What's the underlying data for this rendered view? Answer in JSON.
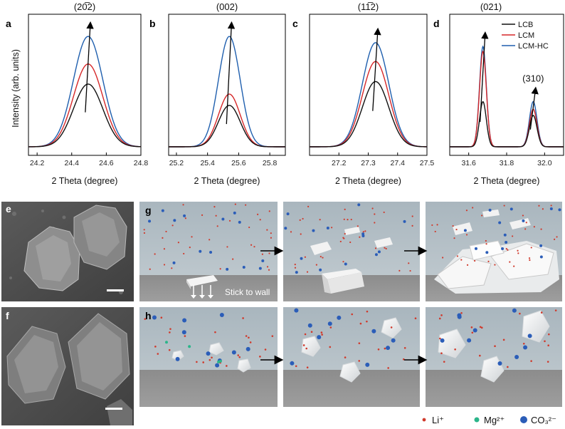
{
  "panel_labels": {
    "a": "a",
    "b": "b",
    "c": "c",
    "d": "d",
    "e": "e",
    "f": "f",
    "g": "g",
    "h": "h"
  },
  "y_axis_label": "Intensity (arb. units)",
  "x_axis_label": "2 Theta (degree)",
  "legend": [
    "LCB",
    "LCM",
    "LCM-HC"
  ],
  "colors": {
    "LCB": "#111111",
    "LCM": "#d62728",
    "LCM-HC": "#1f5fae",
    "li": "#d03a2c",
    "mg": "#2bb58a",
    "co3": "#2b5db8"
  },
  "chart_data": [
    {
      "type": "line",
      "panel": "a",
      "peak_label": "(20̅2)",
      "xlim": [
        24.15,
        24.8
      ],
      "xticks": [
        24.2,
        24.4,
        24.6,
        24.8
      ],
      "xtick_labels": [
        "24.2",
        "24.4",
        "24.6",
        "24.8"
      ],
      "peaks": [
        {
          "center": 24.495,
          "width": 0.085
        }
      ],
      "series": [
        {
          "name": "LCB",
          "heights": [
            0.5
          ]
        },
        {
          "name": "LCM",
          "heights": [
            0.66
          ]
        },
        {
          "name": "LCM-HC",
          "heights": [
            0.88
          ]
        }
      ]
    },
    {
      "type": "line",
      "panel": "b",
      "peak_label": "(002)",
      "xlim": [
        25.15,
        25.9
      ],
      "xticks": [
        25.2,
        25.4,
        25.6,
        25.8
      ],
      "xtick_labels": [
        "25.2",
        "25.4",
        "25.6",
        "25.8"
      ],
      "peaks": [
        {
          "center": 25.54,
          "width": 0.07
        }
      ],
      "series": [
        {
          "name": "LCB",
          "heights": [
            0.33
          ]
        },
        {
          "name": "LCM",
          "heights": [
            0.42
          ]
        },
        {
          "name": "LCM-HC",
          "heights": [
            0.88
          ]
        }
      ]
    },
    {
      "type": "line",
      "panel": "c",
      "peak_label": "(11̅2)",
      "xlim": [
        27.1,
        27.5
      ],
      "xticks": [
        27.2,
        27.3,
        27.4,
        27.5
      ],
      "xtick_labels": [
        "27.2",
        "27.3",
        "27.4",
        "27.5"
      ],
      "peaks": [
        {
          "center": 27.325,
          "width": 0.045
        }
      ],
      "series": [
        {
          "name": "LCB",
          "heights": [
            0.52
          ]
        },
        {
          "name": "LCM",
          "heights": [
            0.68
          ]
        },
        {
          "name": "LCM-HC",
          "heights": [
            0.83
          ]
        }
      ]
    },
    {
      "type": "line",
      "panel": "d",
      "peak_label": "(021)",
      "peak_label2": "(310)",
      "xlim": [
        31.5,
        32.1
      ],
      "xticks": [
        31.6,
        31.8,
        32.0
      ],
      "xtick_labels": [
        "31.6",
        "31.8",
        "32.0"
      ],
      "peaks": [
        {
          "center": 31.675,
          "width": 0.018
        },
        {
          "center": 31.94,
          "width": 0.02
        }
      ],
      "series": [
        {
          "name": "LCB",
          "heights": [
            0.36,
            0.25
          ]
        },
        {
          "name": "LCM",
          "heights": [
            0.76,
            0.3
          ]
        },
        {
          "name": "LCM-HC",
          "heights": [
            0.8,
            0.36
          ]
        }
      ]
    }
  ],
  "annotation_stick": "Stick to wall",
  "ion_legend": {
    "li": "Li⁺",
    "mg": "Mg²⁺",
    "co3": "CO₃²⁻"
  }
}
